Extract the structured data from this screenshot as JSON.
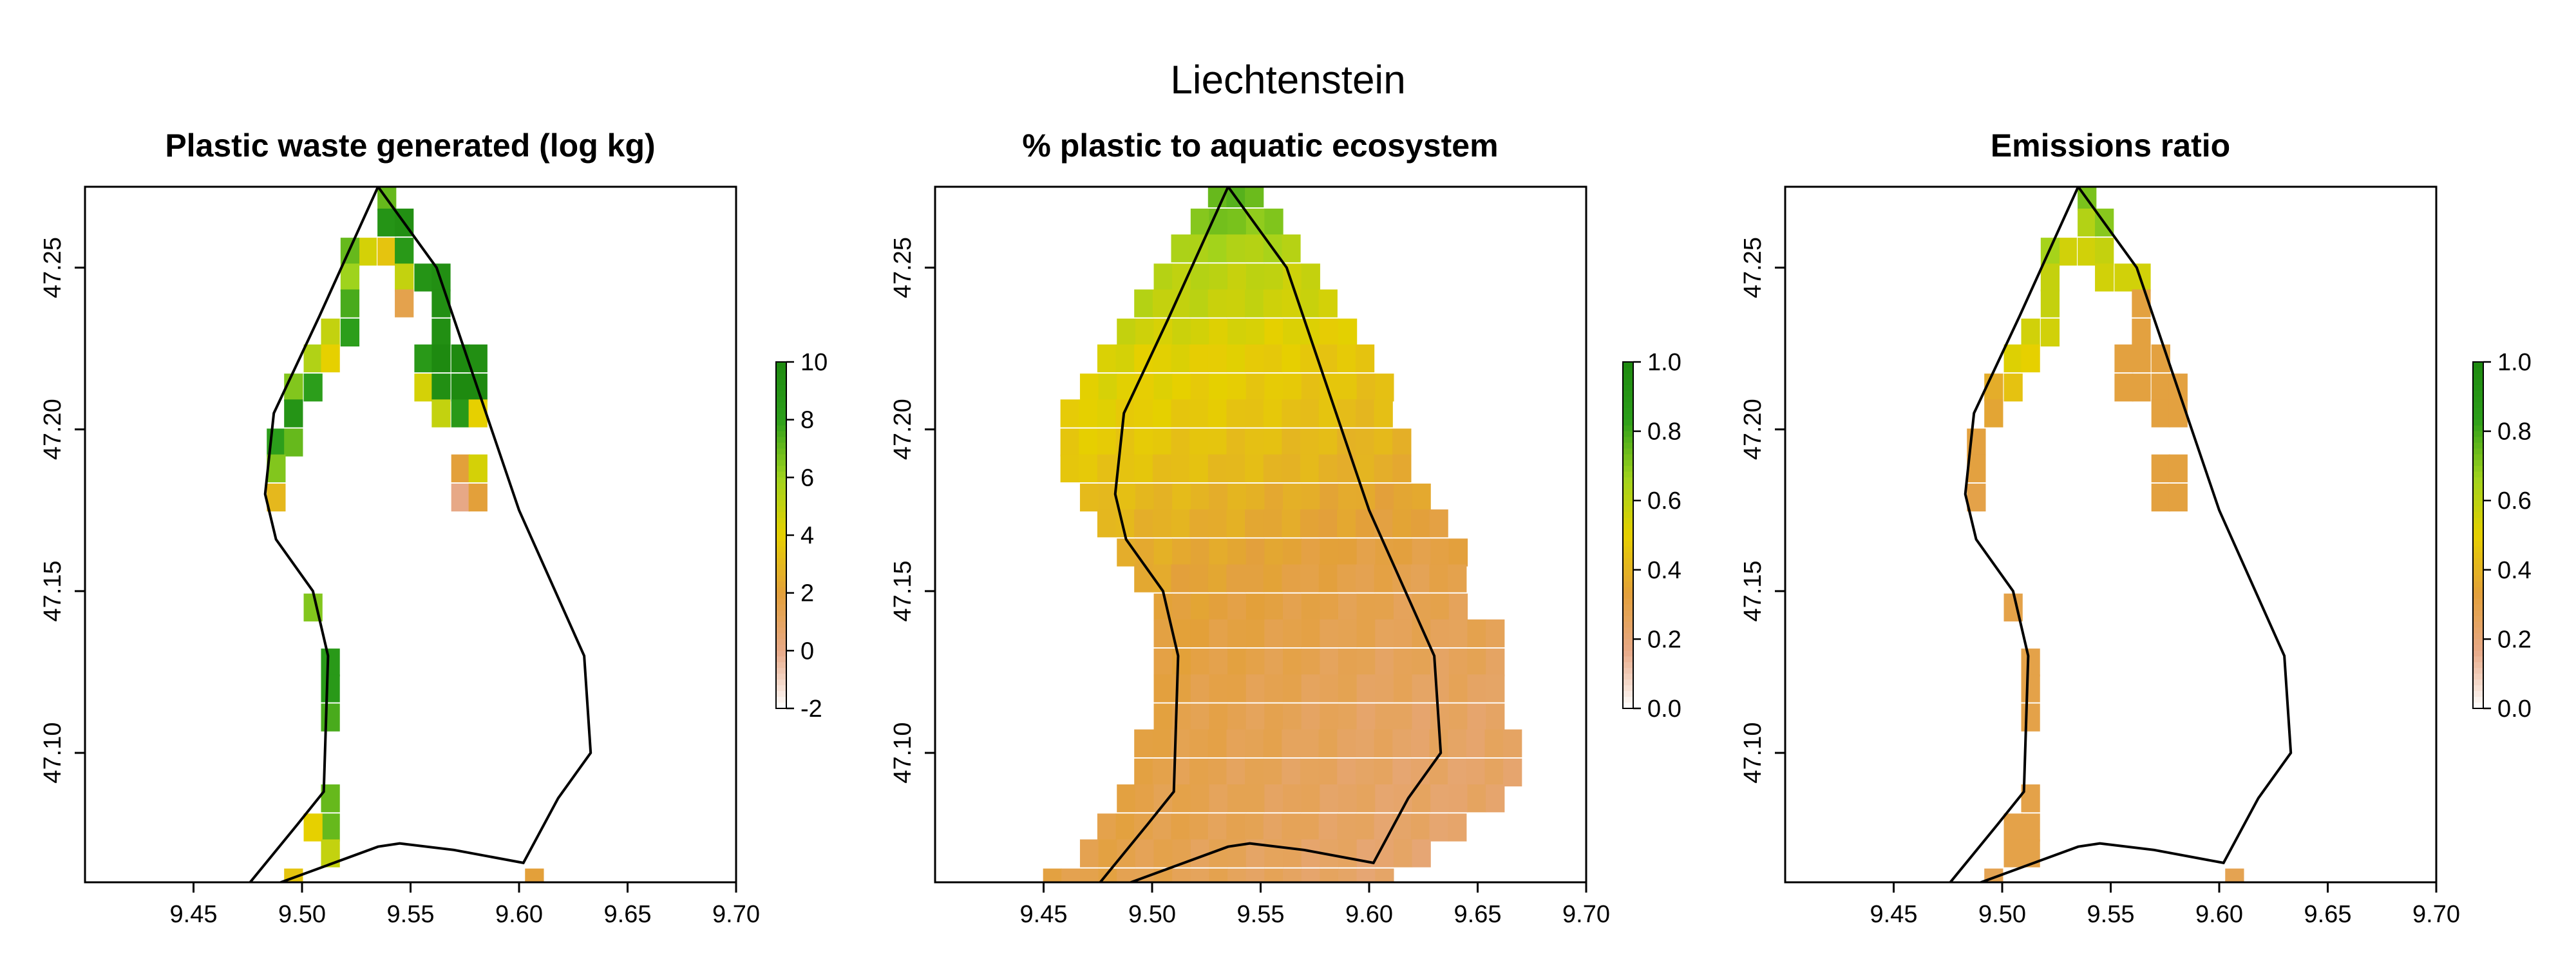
{
  "figure_title": "Liechtenstein",
  "chart_data": [
    {
      "type": "heatmap",
      "title": "Plastic waste generated (log kg)",
      "xlabel": "",
      "ylabel": "",
      "xlim": [
        9.4,
        9.7
      ],
      "ylim": [
        47.06,
        47.275
      ],
      "x_ticks": [
        "9.45",
        "9.50",
        "9.55",
        "9.60",
        "9.65",
        "9.70"
      ],
      "y_ticks": [
        "47.10",
        "47.15",
        "47.20",
        "47.25"
      ],
      "grid": false,
      "colorbar": {
        "min": -2,
        "max": 10,
        "ticks": [
          "-2",
          "0",
          "2",
          "4",
          "6",
          "8",
          "10"
        ]
      },
      "cell_size": [
        0.0085,
        0.0085
      ],
      "cells": [
        [
          9.539,
          47.272,
          7.0
        ],
        [
          9.539,
          47.264,
          9.0
        ],
        [
          9.547,
          47.264,
          9.5
        ],
        [
          9.53,
          47.255,
          4.5
        ],
        [
          9.539,
          47.255,
          3.5
        ],
        [
          9.547,
          47.255,
          8.5
        ],
        [
          9.522,
          47.255,
          7.0
        ],
        [
          9.556,
          47.247,
          9.0
        ],
        [
          9.547,
          47.247,
          5.0
        ],
        [
          9.522,
          47.247,
          6.0
        ],
        [
          9.564,
          47.247,
          9.5
        ],
        [
          9.547,
          47.239,
          1.5
        ],
        [
          9.522,
          47.239,
          7.5
        ],
        [
          9.564,
          47.239,
          9.5
        ],
        [
          9.513,
          47.23,
          5.0
        ],
        [
          9.522,
          47.23,
          8.0
        ],
        [
          9.564,
          47.23,
          9.5
        ],
        [
          9.505,
          47.222,
          5.5
        ],
        [
          9.513,
          47.222,
          4.0
        ],
        [
          9.556,
          47.222,
          8.5
        ],
        [
          9.564,
          47.222,
          10.0
        ],
        [
          9.573,
          47.222,
          10.5
        ],
        [
          9.581,
          47.222,
          9.5
        ],
        [
          9.496,
          47.213,
          6.5
        ],
        [
          9.505,
          47.213,
          8.0
        ],
        [
          9.556,
          47.213,
          4.5
        ],
        [
          9.564,
          47.213,
          9.5
        ],
        [
          9.573,
          47.213,
          10.5
        ],
        [
          9.581,
          47.213,
          10.0
        ],
        [
          9.496,
          47.205,
          9.0
        ],
        [
          9.564,
          47.205,
          5.0
        ],
        [
          9.573,
          47.205,
          8.5
        ],
        [
          9.581,
          47.205,
          4.0
        ],
        [
          9.488,
          47.196,
          8.0
        ],
        [
          9.496,
          47.196,
          7.0
        ],
        [
          9.488,
          47.188,
          6.5
        ],
        [
          9.573,
          47.188,
          2.0
        ],
        [
          9.581,
          47.188,
          4.5
        ],
        [
          9.488,
          47.179,
          3.0
        ],
        [
          9.573,
          47.179,
          0.0
        ],
        [
          9.581,
          47.179,
          2.0
        ],
        [
          9.505,
          47.145,
          6.5
        ],
        [
          9.513,
          47.128,
          8.5
        ],
        [
          9.513,
          47.12,
          8.5
        ],
        [
          9.513,
          47.111,
          7.5
        ],
        [
          9.513,
          47.086,
          7.0
        ],
        [
          9.513,
          47.077,
          7.0
        ],
        [
          9.505,
          47.077,
          4.0
        ],
        [
          9.513,
          47.069,
          5.0
        ],
        [
          9.496,
          47.06,
          3.5
        ],
        [
          9.607,
          47.06,
          2.0
        ]
      ]
    },
    {
      "type": "heatmap",
      "title": "% plastic to aquatic ecosystem",
      "xlabel": "",
      "ylabel": "",
      "xlim": [
        9.4,
        9.7
      ],
      "ylim": [
        47.06,
        47.275
      ],
      "x_ticks": [
        "9.45",
        "9.50",
        "9.55",
        "9.60",
        "9.65",
        "9.70"
      ],
      "y_ticks": [
        "47.10",
        "47.15",
        "47.20",
        "47.25"
      ],
      "grid": false,
      "colorbar": {
        "min": 0.0,
        "max": 1.0,
        "ticks": [
          "0.0",
          "0.2",
          "0.4",
          "0.6",
          "0.8",
          "1.0"
        ]
      },
      "field_cell_size": [
        0.0085,
        0.0085
      ],
      "field_description_values": "filled region: north tip ~0.7-0.8, 47.22-47.25 ~0.55-0.6, 47.17-47.22 ~0.45-0.5, center 47.12-47.17 ~0.35, south/east ~0.25-0.3",
      "field_rows": [
        [
          47.273,
          9.53,
          9.547,
          0.74
        ],
        [
          47.264,
          9.522,
          9.556,
          0.7
        ],
        [
          47.256,
          9.513,
          9.564,
          0.62
        ],
        [
          47.247,
          9.505,
          9.573,
          0.58
        ],
        [
          47.239,
          9.496,
          9.581,
          0.56
        ],
        [
          47.23,
          9.488,
          9.59,
          0.52
        ],
        [
          47.222,
          9.479,
          9.598,
          0.48
        ],
        [
          47.213,
          9.471,
          9.607,
          0.47
        ],
        [
          47.205,
          9.462,
          9.607,
          0.45
        ],
        [
          47.196,
          9.462,
          9.615,
          0.43
        ],
        [
          47.188,
          9.462,
          9.615,
          0.41
        ],
        [
          47.179,
          9.471,
          9.624,
          0.38
        ],
        [
          47.171,
          9.479,
          9.632,
          0.36
        ],
        [
          47.162,
          9.488,
          9.641,
          0.34
        ],
        [
          47.154,
          9.496,
          9.641,
          0.32
        ],
        [
          47.145,
          9.505,
          9.649,
          0.31
        ],
        [
          47.137,
          9.505,
          9.658,
          0.3
        ],
        [
          47.128,
          9.505,
          9.666,
          0.29
        ],
        [
          47.12,
          9.505,
          9.666,
          0.28
        ],
        [
          47.111,
          9.505,
          9.666,
          0.27
        ],
        [
          47.103,
          9.496,
          9.666,
          0.27
        ],
        [
          47.094,
          9.496,
          9.666,
          0.26
        ],
        [
          47.086,
          9.488,
          9.658,
          0.26
        ],
        [
          47.077,
          9.479,
          9.641,
          0.26
        ],
        [
          47.069,
          9.471,
          9.632,
          0.25
        ],
        [
          47.06,
          9.454,
          9.615,
          0.25
        ],
        [
          47.052,
          9.454,
          9.471,
          0.22
        ]
      ]
    },
    {
      "type": "heatmap",
      "title": "Emissions ratio",
      "xlabel": "",
      "ylabel": "",
      "xlim": [
        9.4,
        9.7
      ],
      "ylim": [
        47.06,
        47.275
      ],
      "x_ticks": [
        "9.45",
        "9.50",
        "9.55",
        "9.60",
        "9.65",
        "9.70"
      ],
      "y_ticks": [
        "47.10",
        "47.15",
        "47.20",
        "47.25"
      ],
      "grid": false,
      "colorbar": {
        "min": 0.0,
        "max": 1.0,
        "ticks": [
          "0.0",
          "0.2",
          "0.4",
          "0.6",
          "0.8",
          "1.0"
        ]
      },
      "cell_size": [
        0.0085,
        0.0085
      ],
      "cells": [
        [
          9.539,
          47.272,
          0.72
        ],
        [
          9.539,
          47.264,
          0.62
        ],
        [
          9.547,
          47.264,
          0.7
        ],
        [
          9.53,
          47.255,
          0.55
        ],
        [
          9.539,
          47.255,
          0.55
        ],
        [
          9.547,
          47.255,
          0.58
        ],
        [
          9.522,
          47.255,
          0.65
        ],
        [
          9.556,
          47.247,
          0.55
        ],
        [
          9.547,
          47.247,
          0.55
        ],
        [
          9.522,
          47.247,
          0.58
        ],
        [
          9.564,
          47.247,
          0.55
        ],
        [
          9.522,
          47.239,
          0.58
        ],
        [
          9.564,
          47.239,
          0.32
        ],
        [
          9.513,
          47.23,
          0.55
        ],
        [
          9.522,
          47.23,
          0.55
        ],
        [
          9.564,
          47.23,
          0.32
        ],
        [
          9.505,
          47.222,
          0.52
        ],
        [
          9.513,
          47.222,
          0.5
        ],
        [
          9.556,
          47.222,
          0.32
        ],
        [
          9.564,
          47.222,
          0.32
        ],
        [
          9.573,
          47.222,
          0.32
        ],
        [
          9.556,
          47.213,
          0.32
        ],
        [
          9.564,
          47.213,
          0.32
        ],
        [
          9.573,
          47.213,
          0.32
        ],
        [
          9.581,
          47.213,
          0.32
        ],
        [
          9.496,
          47.213,
          0.38
        ],
        [
          9.505,
          47.213,
          0.45
        ],
        [
          9.496,
          47.205,
          0.35
        ],
        [
          9.573,
          47.205,
          0.32
        ],
        [
          9.581,
          47.205,
          0.32
        ],
        [
          9.488,
          47.196,
          0.32
        ],
        [
          9.488,
          47.188,
          0.32
        ],
        [
          9.488,
          47.179,
          0.3
        ],
        [
          9.573,
          47.188,
          0.32
        ],
        [
          9.581,
          47.188,
          0.32
        ],
        [
          9.573,
          47.179,
          0.32
        ],
        [
          9.581,
          47.179,
          0.32
        ],
        [
          9.505,
          47.145,
          0.3
        ],
        [
          9.513,
          47.128,
          0.3
        ],
        [
          9.513,
          47.12,
          0.3
        ],
        [
          9.513,
          47.111,
          0.3
        ],
        [
          9.513,
          47.086,
          0.3
        ],
        [
          9.513,
          47.077,
          0.3
        ],
        [
          9.505,
          47.077,
          0.3
        ],
        [
          9.513,
          47.069,
          0.3
        ],
        [
          9.505,
          47.069,
          0.3
        ],
        [
          9.496,
          47.06,
          0.28
        ],
        [
          9.607,
          47.06,
          0.28
        ]
      ]
    }
  ],
  "boundary": [
    [
      9.535,
      47.275
    ],
    [
      9.562,
      47.25
    ],
    [
      9.6,
      47.175
    ],
    [
      9.63,
      47.13
    ],
    [
      9.633,
      47.1
    ],
    [
      9.618,
      47.086
    ],
    [
      9.602,
      47.066
    ],
    [
      9.57,
      47.07
    ],
    [
      9.545,
      47.072
    ],
    [
      9.535,
      47.071
    ],
    [
      9.47,
      47.055
    ],
    [
      9.498,
      47.078
    ],
    [
      9.51,
      47.088
    ],
    [
      9.512,
      47.13
    ],
    [
      9.505,
      47.15
    ],
    [
      9.488,
      47.166
    ],
    [
      9.483,
      47.18
    ],
    [
      9.487,
      47.205
    ],
    [
      9.508,
      47.235
    ],
    [
      9.535,
      47.275
    ]
  ],
  "colors": {
    "scale": [
      "#ffffff",
      "#e7a886",
      "#e3a03a",
      "#e6d000",
      "#9fd31d",
      "#2c9e1b",
      "#1e8a10"
    ],
    "axis": "#000000",
    "boundary": "#000000"
  }
}
